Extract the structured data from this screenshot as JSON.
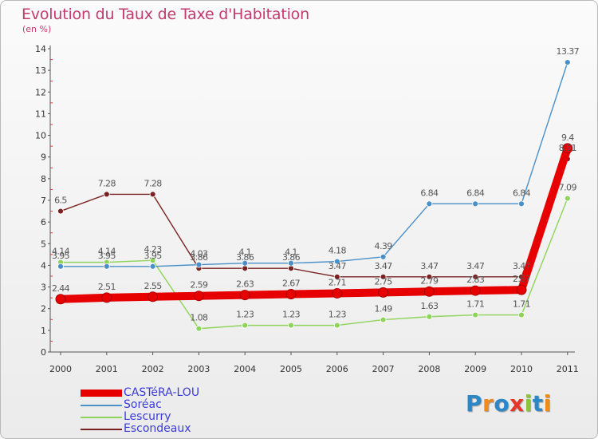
{
  "header": {
    "title": "Evolution du Taux de Taxe d'Habitation",
    "subtitle": "(en %)"
  },
  "logo": {
    "text": "Proxiti",
    "letter_colors": [
      "#2b88c8",
      "#f08a1c",
      "#2b88c8",
      "#e8352a",
      "#8cc43c",
      "#2b88c8",
      "#f08a1c"
    ]
  },
  "chart_data": {
    "type": "line",
    "title": "Evolution du Taux de Taxe d'Habitation",
    "subtitle": "(en %)",
    "xlabel": "",
    "ylabel": "",
    "x": [
      "2000",
      "2001",
      "2002",
      "2003",
      "2004",
      "2005",
      "2006",
      "2007",
      "2008",
      "2009",
      "2010",
      "2011"
    ],
    "y_ticks": [
      "0",
      "1",
      "2",
      "3",
      "4",
      "5",
      "6",
      "7",
      "8",
      "9",
      "10",
      "11",
      "12",
      "13",
      "14"
    ],
    "ylim": [
      0,
      14
    ],
    "grid": false,
    "legend_position": "bottom-left",
    "series": [
      {
        "name": "CASTéRA-LOU",
        "color": "#e60000",
        "values": [
          2.44,
          2.51,
          2.55,
          2.59,
          2.63,
          2.67,
          2.71,
          2.75,
          2.79,
          2.83,
          2.87,
          9.4
        ],
        "labels": [
          "2.44",
          "2.51",
          "2.55",
          "2.59",
          "2.63",
          "2.67",
          "2.71",
          "2.75",
          "2.79",
          "2.83",
          "2.87",
          "9.4"
        ]
      },
      {
        "name": "Soréac",
        "color": "#4a90c8",
        "values": [
          3.95,
          3.95,
          3.95,
          4.03,
          4.1,
          4.1,
          4.18,
          4.39,
          6.84,
          6.84,
          6.84,
          13.37
        ],
        "labels": [
          "3.95",
          "3.95",
          "3.95",
          "4.03",
          "4.1",
          "4.1",
          "4.18",
          "4.39",
          "6.84",
          "6.84",
          "6.84",
          "13.37"
        ]
      },
      {
        "name": "Lescurry",
        "color": "#8fd45a",
        "values": [
          4.14,
          4.14,
          4.23,
          1.08,
          1.23,
          1.23,
          1.23,
          1.49,
          1.63,
          1.71,
          1.71,
          7.09
        ],
        "labels": [
          "4.14",
          "4.14",
          "4.23",
          "1.08",
          "1.23",
          "1.23",
          "1.23",
          "1.49",
          "1.63",
          "1.71",
          "1.71",
          "7.09"
        ]
      },
      {
        "name": "Escondeaux",
        "color": "#7a2222",
        "values": [
          6.5,
          7.28,
          7.28,
          3.86,
          3.86,
          3.86,
          3.47,
          3.47,
          3.47,
          3.47,
          3.47,
          8.91
        ],
        "labels": [
          "6.5",
          "7.28",
          "7.28",
          "3.86",
          "3.86",
          "3.86",
          "3.47",
          "3.47",
          "3.47",
          "3.47",
          "3.47",
          "8.91"
        ]
      }
    ]
  }
}
